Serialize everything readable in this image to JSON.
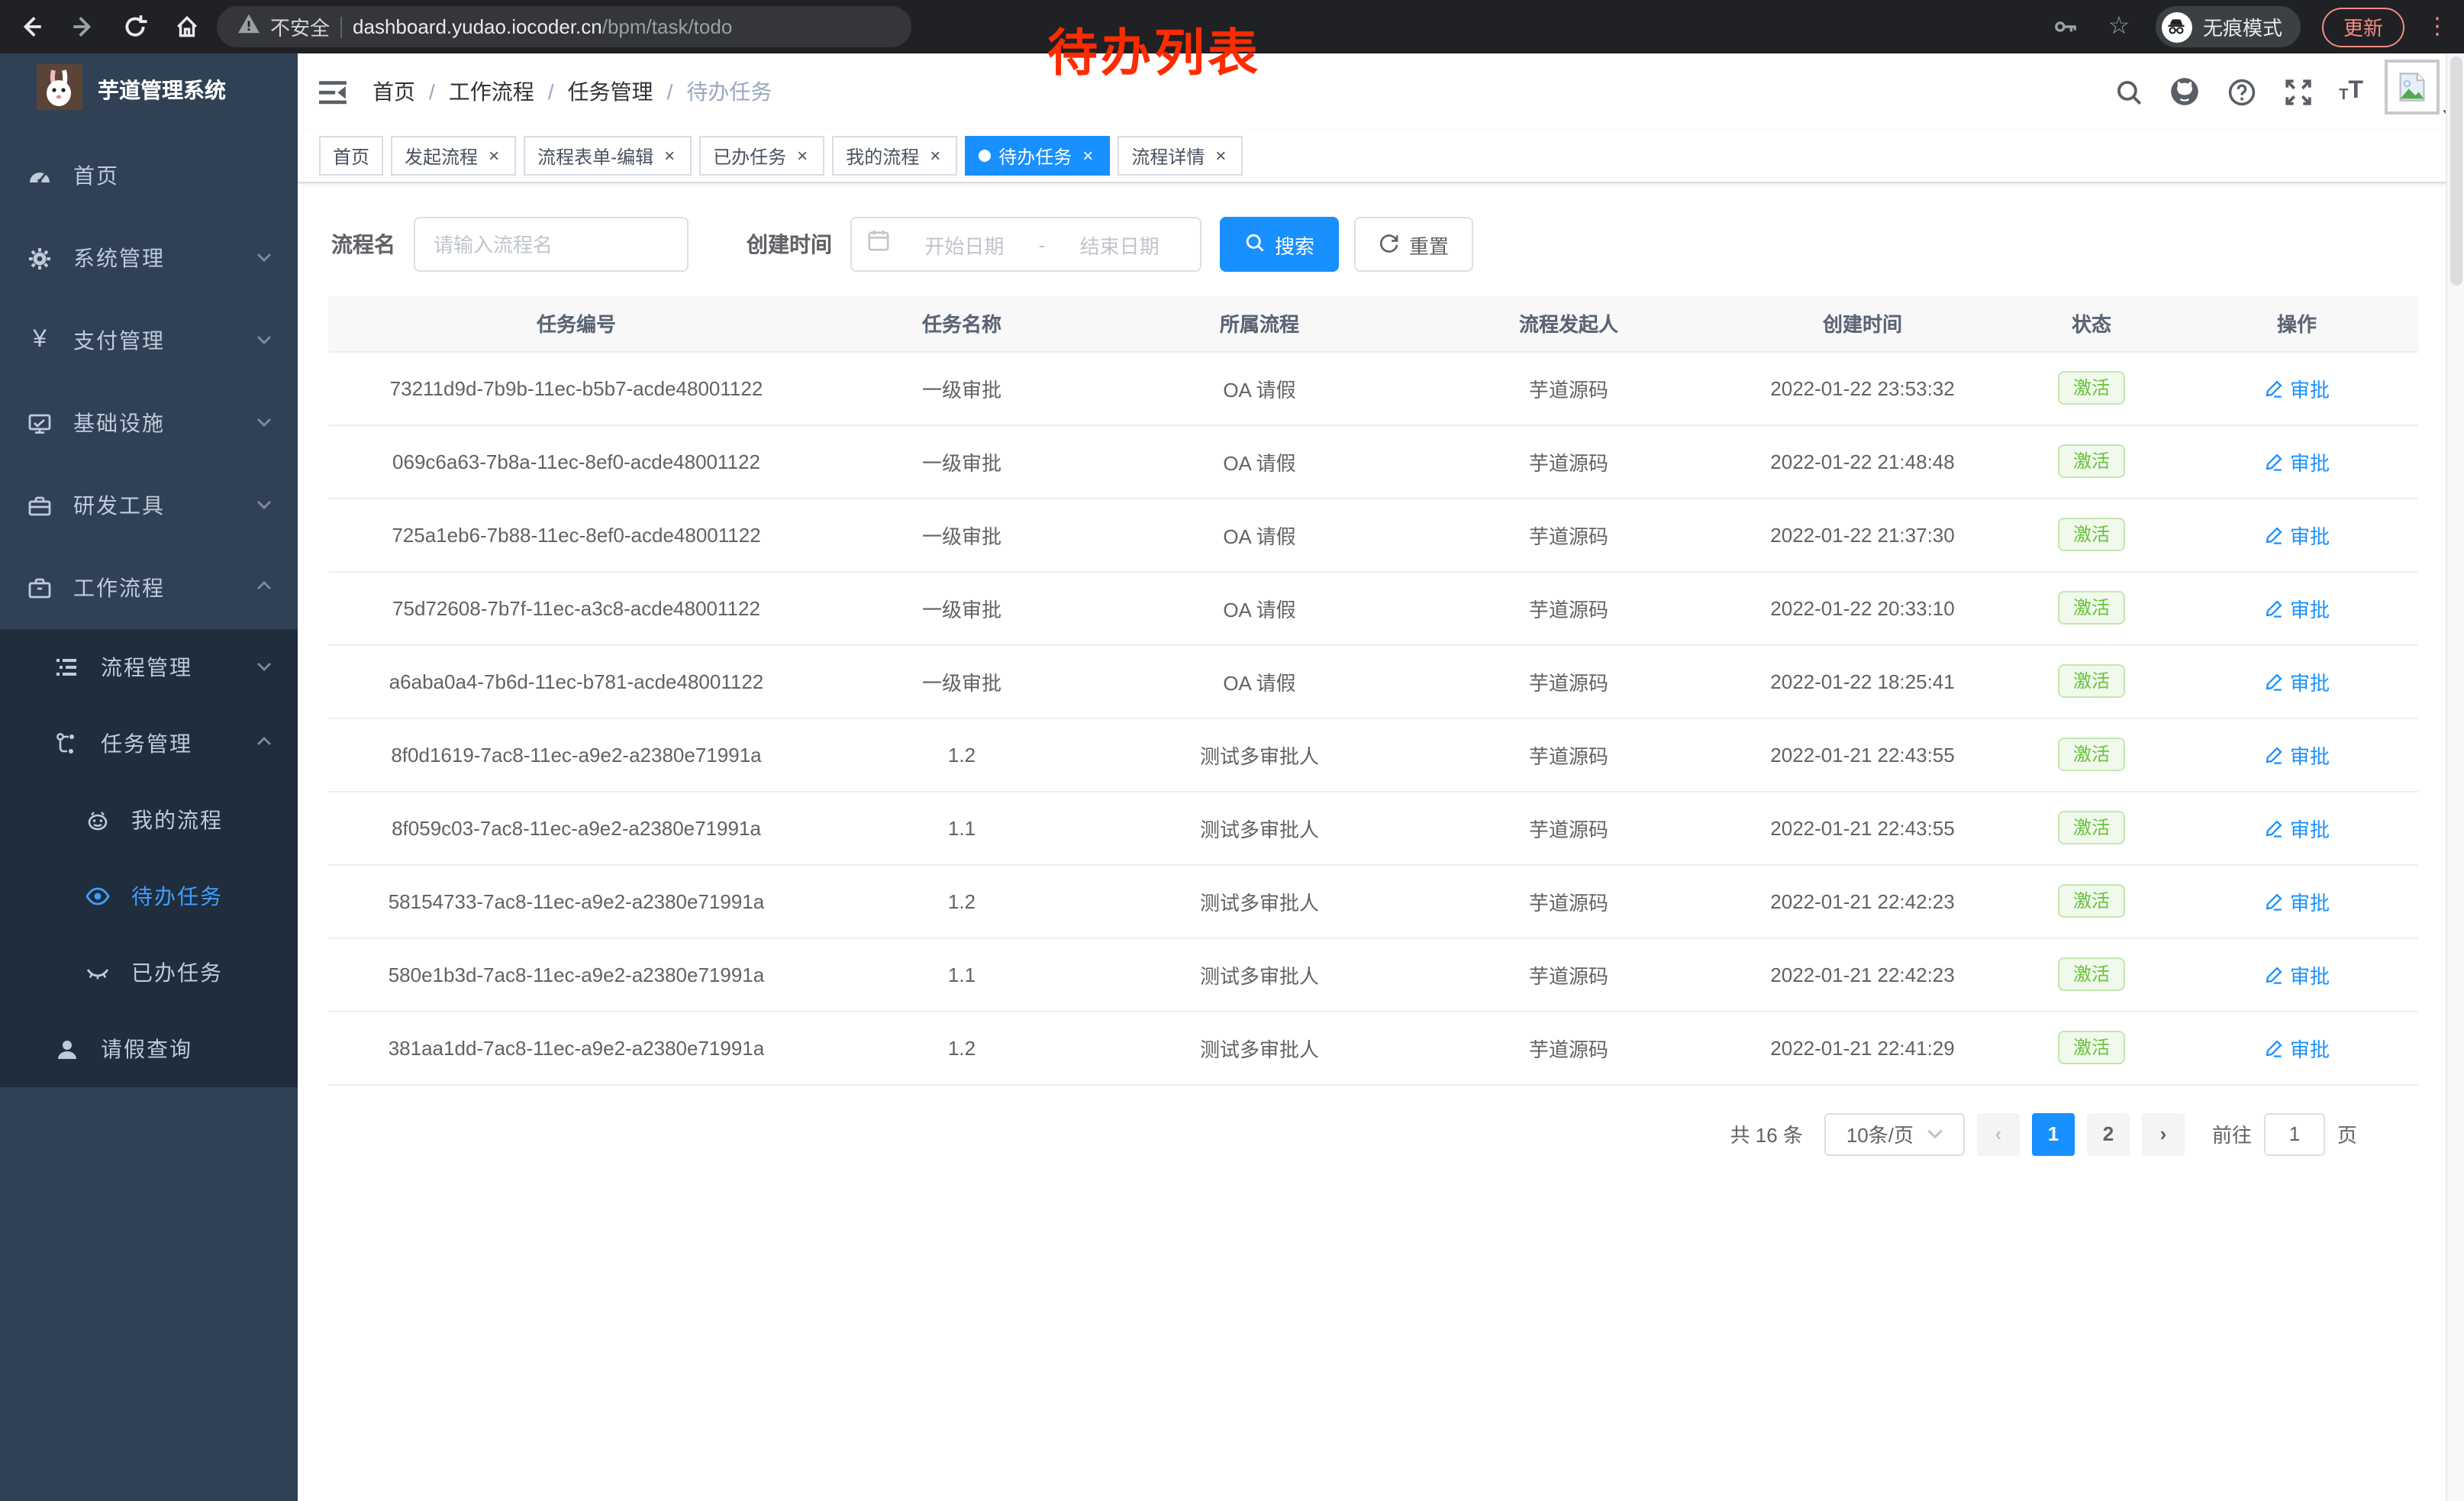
{
  "browser": {
    "security_label": "不安全",
    "url_host": "dashboard.yudao.iocoder.cn",
    "url_path": "/bpm/task/todo",
    "incognito_label": "无痕模式",
    "update_label": "更新",
    "icons": {
      "back": "arrow-left-icon",
      "forward": "arrow-right-icon",
      "reload": "reload-icon",
      "home": "home-icon",
      "warning": "warning-icon",
      "key": "key-icon",
      "star": "star-icon",
      "incognito": "incognito-icon",
      "menu": "kebab-menu-icon"
    }
  },
  "glyphs": {
    "star": "☆",
    "kebab": "⋮",
    "close": "×",
    "caret": "▾"
  },
  "annotation": {
    "text": "待办列表",
    "color": "#fe2b00"
  },
  "sidebar": {
    "logo_title": "芋道管理系统",
    "logo_icon": "rabbit-logo",
    "items": [
      {
        "label": "首页",
        "icon": "gauge-icon"
      },
      {
        "label": "系统管理",
        "icon": "gear-icon",
        "chevron": "down"
      },
      {
        "label": "支付管理",
        "icon": "yen-icon",
        "chevron": "down",
        "yen_glyph": "¥"
      },
      {
        "label": "基础设施",
        "icon": "monitor-icon",
        "chevron": "down"
      },
      {
        "label": "研发工具",
        "icon": "toolbox-icon",
        "chevron": "down"
      },
      {
        "label": "工作流程",
        "icon": "briefcase-icon",
        "chevron": "up"
      }
    ],
    "submenu": [
      {
        "label": "流程管理",
        "icon": "tree-list-icon",
        "chevron": "down"
      },
      {
        "label": "任务管理",
        "icon": "flow-icon",
        "chevron": "up"
      }
    ],
    "task_items": [
      {
        "label": "我的流程",
        "icon": "robot-icon",
        "active": false
      },
      {
        "label": "待办任务",
        "icon": "eye-icon",
        "active": true
      },
      {
        "label": "已办任务",
        "icon": "eye-closed-icon",
        "active": false
      }
    ],
    "leave_item": {
      "label": "请假查询",
      "icon": "user-icon"
    }
  },
  "header": {
    "breadcrumb": [
      "首页",
      "工作流程",
      "任务管理",
      "待办任务"
    ],
    "separator": "/",
    "right_icons": [
      "search-icon",
      "github-icon",
      "help-icon",
      "fullscreen-icon",
      "fontsize-icon",
      "avatar",
      "chevron-down-icon"
    ],
    "fontsize_small": "T",
    "fontsize_large": "T"
  },
  "tabs": [
    {
      "label": "首页",
      "closable": false,
      "active": false
    },
    {
      "label": "发起流程",
      "closable": true,
      "active": false
    },
    {
      "label": "流程表单-编辑",
      "closable": true,
      "active": false
    },
    {
      "label": "已办任务",
      "closable": true,
      "active": false
    },
    {
      "label": "我的流程",
      "closable": true,
      "active": false
    },
    {
      "label": "待办任务",
      "closable": true,
      "active": true
    },
    {
      "label": "流程详情",
      "closable": true,
      "active": false
    }
  ],
  "filters": {
    "name_label": "流程名",
    "name_placeholder": "请输入流程名",
    "time_label": "创建时间",
    "start_placeholder": "开始日期",
    "range_separator": "-",
    "end_placeholder": "结束日期",
    "search_label": "搜索",
    "reset_label": "重置",
    "calendar_icon": "calendar-icon",
    "search_icon": "search-icon",
    "reset_icon": "refresh-icon"
  },
  "table": {
    "columns": [
      "任务编号",
      "任务名称",
      "所属流程",
      "流程发起人",
      "创建时间",
      "状态",
      "操作"
    ],
    "action_label": "审批",
    "action_icon": "edit-pen-icon",
    "status_color": "#67c23a",
    "rows": [
      {
        "id": "73211d9d-7b9b-11ec-b5b7-acde48001122",
        "name": "一级审批",
        "process": "OA 请假",
        "initiator": "芋道源码",
        "time": "2022-01-22 23:53:32",
        "status": "激活"
      },
      {
        "id": "069c6a63-7b8a-11ec-8ef0-acde48001122",
        "name": "一级审批",
        "process": "OA 请假",
        "initiator": "芋道源码",
        "time": "2022-01-22 21:48:48",
        "status": "激活"
      },
      {
        "id": "725a1eb6-7b88-11ec-8ef0-acde48001122",
        "name": "一级审批",
        "process": "OA 请假",
        "initiator": "芋道源码",
        "time": "2022-01-22 21:37:30",
        "status": "激活"
      },
      {
        "id": "75d72608-7b7f-11ec-a3c8-acde48001122",
        "name": "一级审批",
        "process": "OA 请假",
        "initiator": "芋道源码",
        "time": "2022-01-22 20:33:10",
        "status": "激活"
      },
      {
        "id": "a6aba0a4-7b6d-11ec-b781-acde48001122",
        "name": "一级审批",
        "process": "OA 请假",
        "initiator": "芋道源码",
        "time": "2022-01-22 18:25:41",
        "status": "激活"
      },
      {
        "id": "8f0d1619-7ac8-11ec-a9e2-a2380e71991a",
        "name": "1.2",
        "process": "测试多审批人",
        "initiator": "芋道源码",
        "time": "2022-01-21 22:43:55",
        "status": "激活"
      },
      {
        "id": "8f059c03-7ac8-11ec-a9e2-a2380e71991a",
        "name": "1.1",
        "process": "测试多审批人",
        "initiator": "芋道源码",
        "time": "2022-01-21 22:43:55",
        "status": "激活"
      },
      {
        "id": "58154733-7ac8-11ec-a9e2-a2380e71991a",
        "name": "1.2",
        "process": "测试多审批人",
        "initiator": "芋道源码",
        "time": "2022-01-21 22:42:23",
        "status": "激活"
      },
      {
        "id": "580e1b3d-7ac8-11ec-a9e2-a2380e71991a",
        "name": "1.1",
        "process": "测试多审批人",
        "initiator": "芋道源码",
        "time": "2022-01-21 22:42:23",
        "status": "激活"
      },
      {
        "id": "381aa1dd-7ac8-11ec-a9e2-a2380e71991a",
        "name": "1.2",
        "process": "测试多审批人",
        "initiator": "芋道源码",
        "time": "2022-01-21 22:41:29",
        "status": "激活"
      }
    ]
  },
  "pagination": {
    "total": "共 16 条",
    "page_size": "10条/页",
    "prev_glyph": "‹",
    "next_glyph": "›",
    "pages": [
      "1",
      "2"
    ],
    "active_page": "1",
    "goto_label": "前往",
    "goto_value": "1",
    "unit_label": "页"
  },
  "colors": {
    "accent_blue": "#1890ff",
    "sidebar_bg": "#304156",
    "submenu_bg": "#1f2d3d",
    "sidebar_text": "#bfcbd9",
    "active_link": "#409eff",
    "badge_green": "#67c23a",
    "badge_bg": "#f0f9eb",
    "chrome_bg": "#202124",
    "update_red": "#f28b82"
  }
}
